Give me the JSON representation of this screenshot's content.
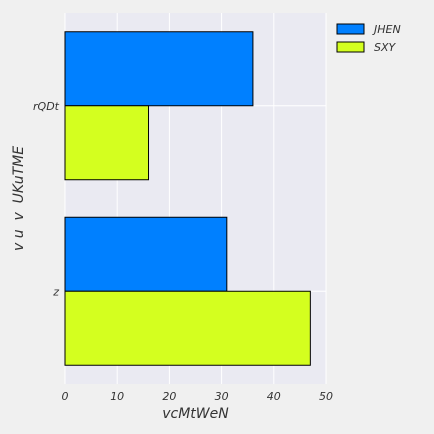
{
  "chart_data": {
    "type": "bar",
    "orientation": "horizontal",
    "categories": [
      "rQDt",
      "z"
    ],
    "series": [
      {
        "name": "JHEN",
        "values": [
          36,
          31
        ],
        "color": "#0080ff"
      },
      {
        "name": "SXY",
        "values": [
          16,
          47
        ],
        "color": "#d4ff1f"
      }
    ],
    "xlabel": "vcMtWeN",
    "ylabel": "v u  v  UKuTME",
    "xlim": [
      0,
      50
    ],
    "xticks": [
      0,
      10,
      20,
      30,
      40,
      50
    ],
    "grid": true,
    "legend_position": "top-right",
    "colors": {
      "page_background": "#f0f0f0",
      "plot_background": "#eaeaf2",
      "grid": "#ffffff",
      "bar_edge": "#000000"
    }
  }
}
